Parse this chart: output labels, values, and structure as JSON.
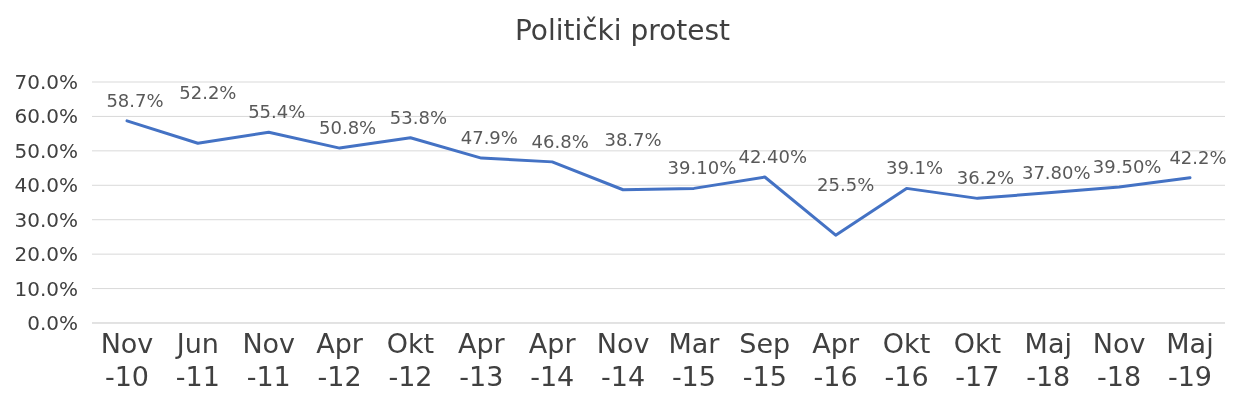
{
  "chart_data": {
    "type": "line",
    "title": "Politički protest",
    "categories": [
      "Nov -10",
      "Jun -11",
      "Nov -11",
      "Apr -12",
      "Okt -12",
      "Apr -13",
      "Apr -14",
      "Nov -14",
      "Mar -15",
      "Sep -15",
      "Apr -16",
      "Okt -16",
      "Okt -17",
      "Maj -18",
      "Nov -18",
      "Maj -19"
    ],
    "series": [
      {
        "color": "#4472c4",
        "values": [
          58.7,
          52.2,
          55.4,
          50.8,
          53.8,
          47.9,
          46.8,
          38.7,
          39.1,
          42.4,
          25.5,
          39.1,
          36.2,
          37.8,
          39.5,
          42.2
        ],
        "value_labels": [
          "58.7%",
          "52.2%",
          "55.4%",
          "50.8%",
          "53.8%",
          "47.9%",
          "46.8%",
          "38.7%",
          "39.10%",
          "42.40%",
          "25.5%",
          "39.1%",
          "36.2%",
          "37.80%",
          "39.50%",
          "42.2%"
        ]
      }
    ],
    "ylim": [
      0,
      70
    ],
    "yticks": [
      {
        "value": 0,
        "label": "0.0%"
      },
      {
        "value": 10,
        "label": "10.0%"
      },
      {
        "value": 20,
        "label": "20.0%"
      },
      {
        "value": 30,
        "label": "30.0%"
      },
      {
        "value": 40,
        "label": "40.0%"
      },
      {
        "value": 50,
        "label": "50.0%"
      },
      {
        "value": 60,
        "label": "60.0%"
      },
      {
        "value": 70,
        "label": "70.0%"
      }
    ],
    "grid": "y",
    "marker": "none",
    "line_style": "solid"
  }
}
